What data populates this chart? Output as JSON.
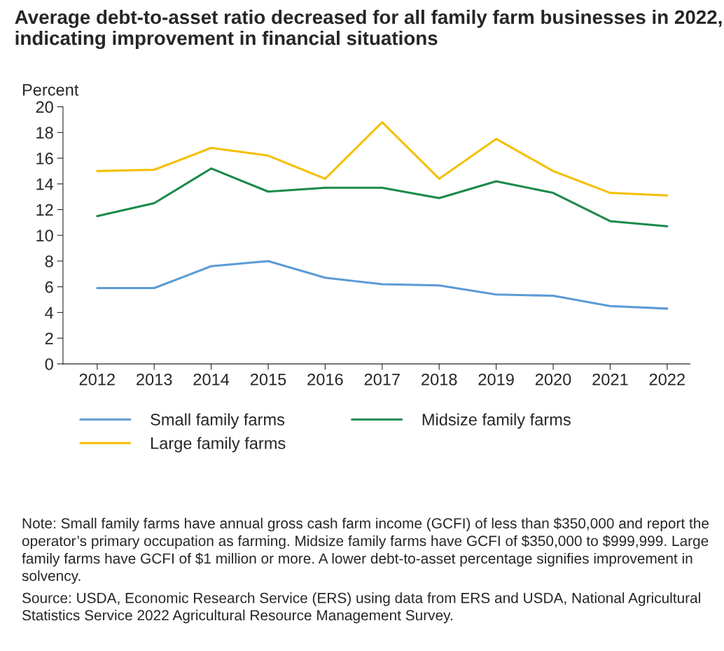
{
  "chart_data": {
    "type": "line",
    "title": "Average debt-to-asset ratio decreased for all family farm businesses in 2022, indicating improvement in financial situations",
    "ylabel": "Percent",
    "categories": [
      "2012",
      "2013",
      "2014",
      "2015",
      "2016",
      "2017",
      "2018",
      "2019",
      "2020",
      "2021",
      "2022"
    ],
    "series": [
      {
        "name": "Small family farms",
        "color": "#5b9bd5",
        "values": [
          5.9,
          5.9,
          7.6,
          8.0,
          6.7,
          6.2,
          6.1,
          5.4,
          5.3,
          4.5,
          4.3
        ]
      },
      {
        "name": "Large family farms",
        "color": "#f5bf00",
        "values": [
          15.0,
          15.1,
          16.8,
          16.2,
          14.4,
          18.8,
          14.4,
          17.5,
          15.0,
          13.3,
          13.1
        ]
      },
      {
        "name": "Midsize family farms",
        "color": "#1a8a4a",
        "values": [
          11.5,
          12.5,
          15.2,
          13.4,
          13.7,
          13.7,
          12.9,
          14.2,
          13.3,
          11.1,
          10.7
        ]
      }
    ],
    "ylim": [
      0,
      20
    ],
    "yticks": [
      0,
      2,
      4,
      6,
      8,
      10,
      12,
      14,
      16,
      18,
      20
    ],
    "grid": false,
    "legend": "bottom",
    "annotations": [
      "Note: Small family farms have annual gross cash farm income (GCFI) of less than $350,000 and report the operator’s primary occupation as farming. Midsize family farms have GCFI of $350,000 to $999,999. Large family farms have GCFI of $1 million or more. A lower debt-to-asset percentage signifies improvement in solvency.",
      "Source: USDA, Economic Research Service (ERS) using data from ERS and USDA, National Agricultural Statistics Service 2022 Agricultural Resource Management Survey."
    ]
  }
}
